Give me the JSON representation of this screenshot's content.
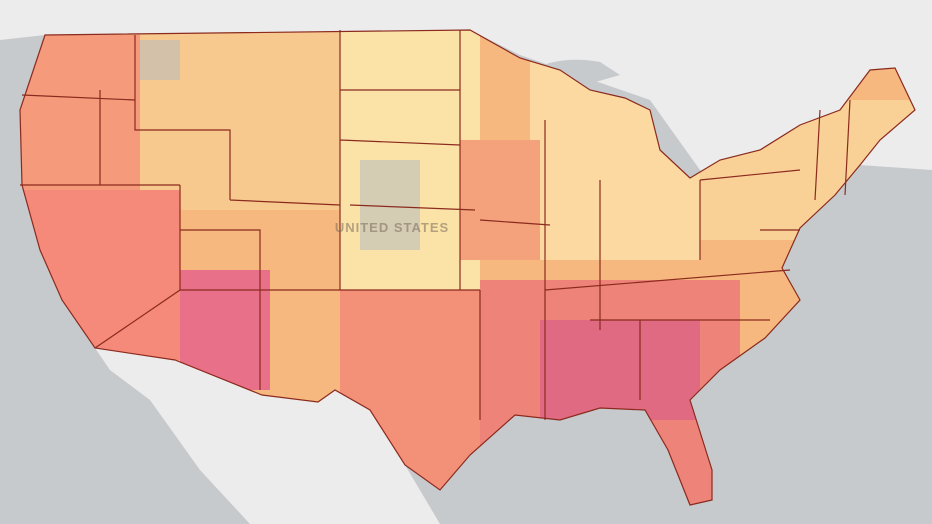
{
  "map": {
    "label": "UNITED STATES"
  }
}
